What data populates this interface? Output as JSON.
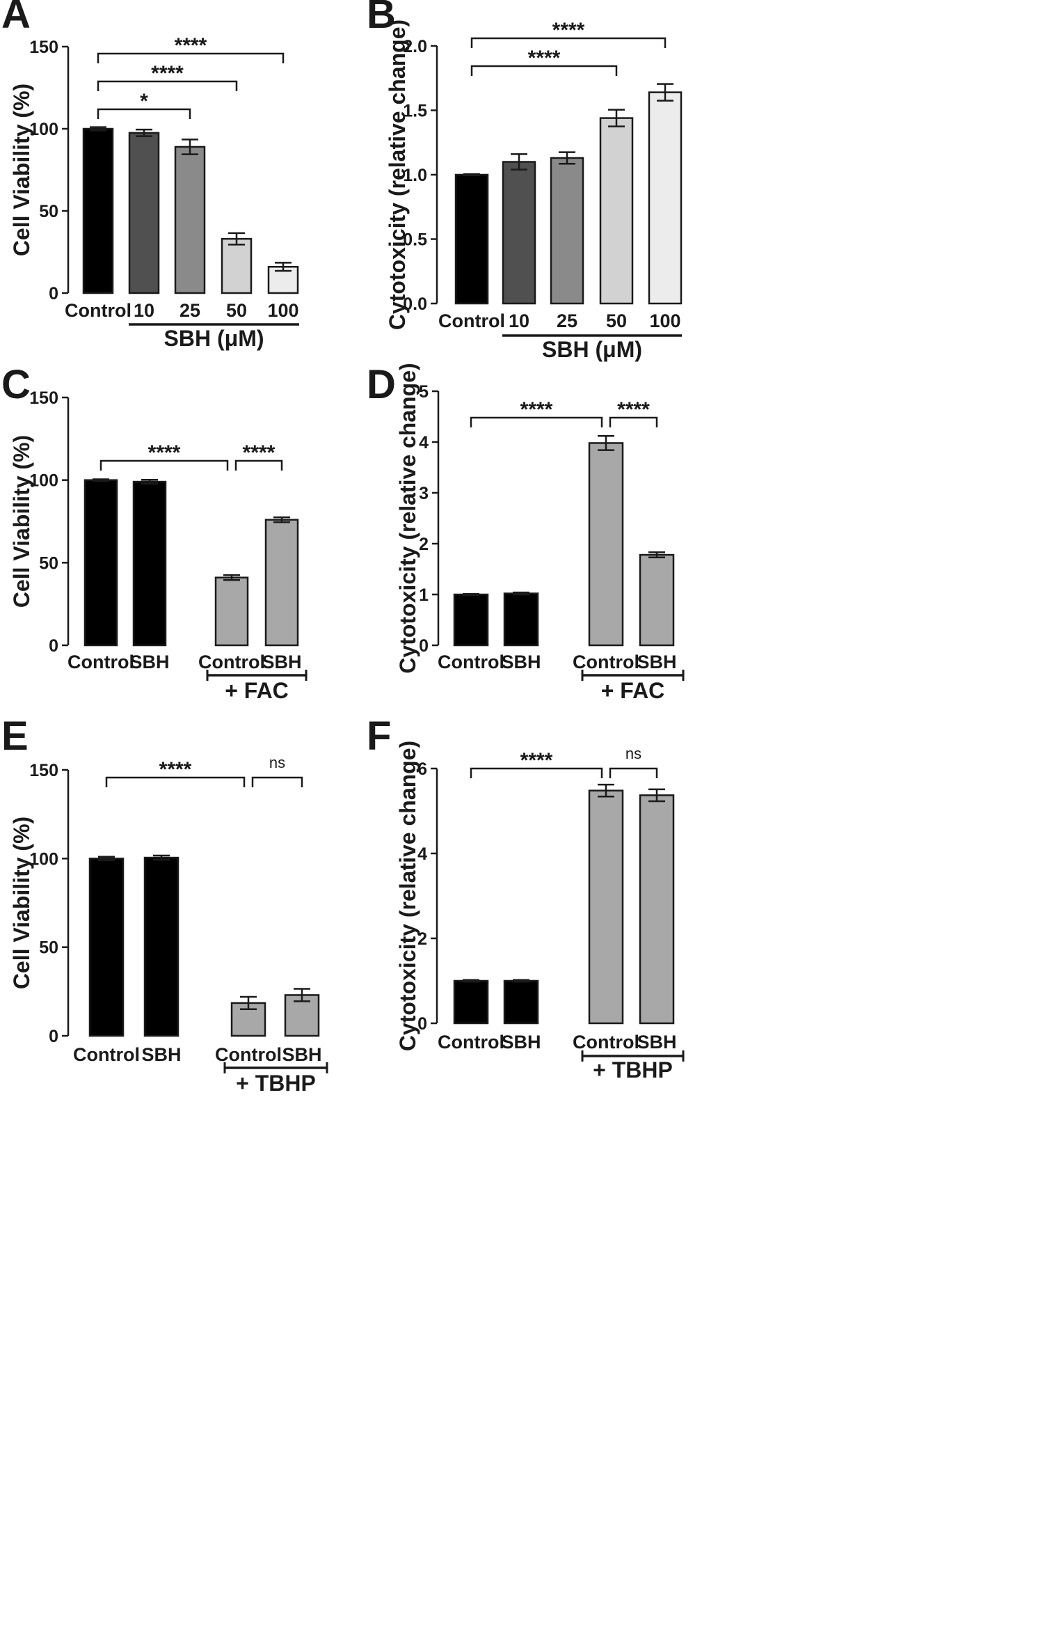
{
  "chart_data": [
    {
      "panel": "A",
      "type": "bar",
      "ylabel": "Cell Viability (%)",
      "ylim": [
        0,
        150
      ],
      "yticks": [
        0,
        50,
        100,
        150
      ],
      "categories": [
        "Control",
        "10",
        "25",
        "50",
        "100"
      ],
      "values": [
        100,
        97.5,
        89,
        33,
        16
      ],
      "errors": [
        1,
        2,
        4.5,
        3.5,
        2.5
      ],
      "colors": [
        "#000000",
        "#505050",
        "#8a8a8a",
        "#d2d2d2",
        "#ececec"
      ],
      "group_label": "SBH (μM)",
      "significance": [
        {
          "from": "Control",
          "to": "25",
          "label": "*"
        },
        {
          "from": "Control",
          "to": "50",
          "label": "****"
        },
        {
          "from": "Control",
          "to": "100",
          "label": "****"
        }
      ]
    },
    {
      "panel": "B",
      "type": "bar",
      "ylabel": "Cytotoxicity (relative change)",
      "ylim": [
        0,
        2.0
      ],
      "yticks": [
        "0.0",
        "0.5",
        "1.0",
        "1.5",
        "2.0"
      ],
      "categories": [
        "Control",
        "10",
        "25",
        "50",
        "100"
      ],
      "values": [
        1.0,
        1.1,
        1.13,
        1.44,
        1.64
      ],
      "errors": [
        0.005,
        0.06,
        0.045,
        0.065,
        0.065
      ],
      "colors": [
        "#000000",
        "#505050",
        "#8a8a8a",
        "#d2d2d2",
        "#ececec"
      ],
      "group_label": "SBH (μM)",
      "significance": [
        {
          "from": "Control",
          "to": "50",
          "label": "****"
        },
        {
          "from": "Control",
          "to": "100",
          "label": "****"
        }
      ]
    },
    {
      "panel": "C",
      "type": "bar",
      "ylabel": "Cell Viability (%)",
      "ylim": [
        0,
        150
      ],
      "yticks": [
        0,
        50,
        100,
        150
      ],
      "categories": [
        "Control",
        "SBH",
        "Control",
        "SBH"
      ],
      "values": [
        100,
        99,
        41,
        76
      ],
      "errors": [
        0.5,
        1.2,
        1.5,
        1.5
      ],
      "colors": [
        "#000000",
        "#000000",
        "#a8a8a8",
        "#a8a8a8"
      ],
      "group_label": "+ FAC",
      "significance": [
        {
          "from_index": 0,
          "to_index": 2,
          "label": "****"
        },
        {
          "from_index": 2,
          "to_index": 3,
          "label": "****"
        }
      ]
    },
    {
      "panel": "D",
      "type": "bar",
      "ylabel": "Cytotoxicity (relative change)",
      "ylim": [
        0,
        5
      ],
      "yticks": [
        0,
        1,
        2,
        3,
        4,
        5
      ],
      "categories": [
        "Control",
        "SBH",
        "Control",
        "SBH"
      ],
      "values": [
        1.0,
        1.02,
        3.98,
        1.78
      ],
      "errors": [
        0.01,
        0.02,
        0.14,
        0.05
      ],
      "colors": [
        "#000000",
        "#000000",
        "#a8a8a8",
        "#a8a8a8"
      ],
      "group_label": "+ FAC",
      "significance": [
        {
          "from_index": 0,
          "to_index": 2,
          "label": "****"
        },
        {
          "from_index": 2,
          "to_index": 3,
          "label": "****"
        }
      ]
    },
    {
      "panel": "E",
      "type": "bar",
      "ylabel": "Cell Viability (%)",
      "ylim": [
        0,
        150
      ],
      "yticks": [
        0,
        50,
        100,
        150
      ],
      "categories": [
        "Control",
        "SBH",
        "Control",
        "SBH"
      ],
      "values": [
        100,
        100.5,
        18.5,
        23
      ],
      "errors": [
        1,
        1.2,
        3.5,
        3.5
      ],
      "colors": [
        "#000000",
        "#000000",
        "#a8a8a8",
        "#a8a8a8"
      ],
      "group_label": "+ TBHP",
      "significance": [
        {
          "from_index": 0,
          "to_index": 2,
          "label": "****"
        },
        {
          "from_index": 2,
          "to_index": 3,
          "label": "ns"
        }
      ]
    },
    {
      "panel": "F",
      "type": "bar",
      "ylabel": "Cytotoxicity (relative change)",
      "ylim": [
        0,
        6
      ],
      "yticks": [
        0,
        2,
        4,
        6
      ],
      "categories": [
        "Control",
        "SBH",
        "Control",
        "SBH"
      ],
      "values": [
        1.0,
        1.0,
        5.48,
        5.37
      ],
      "errors": [
        0.02,
        0.02,
        0.14,
        0.14
      ],
      "colors": [
        "#000000",
        "#000000",
        "#a8a8a8",
        "#a8a8a8"
      ],
      "group_label": "+ TBHP",
      "significance": [
        {
          "from_index": 0,
          "to_index": 2,
          "label": "****"
        },
        {
          "from_index": 2,
          "to_index": 3,
          "label": "ns"
        }
      ]
    }
  ]
}
